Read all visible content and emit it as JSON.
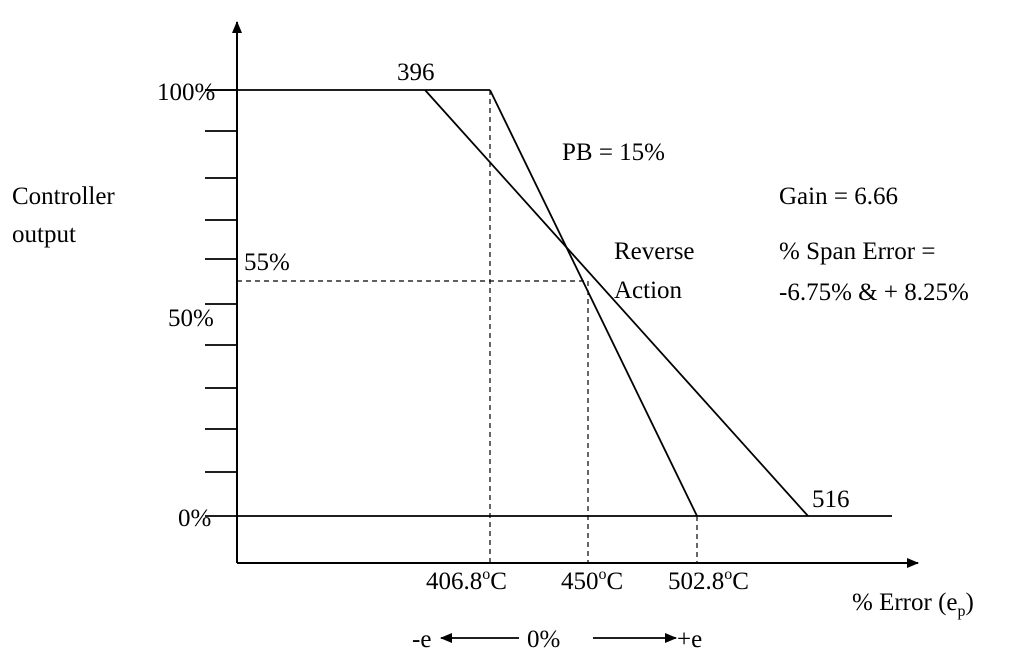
{
  "y_axis": {
    "label_line1": "Controller",
    "label_line2": "output",
    "tick_100": "100%",
    "tick_50": "50%",
    "tick_0": "0%",
    "tick_55": "55%"
  },
  "x_axis": {
    "label_main": "% Error (e",
    "label_sub": "p",
    "label_close": ")",
    "t1_value": "406.8",
    "t2_value": "450",
    "t3_value": "502.8",
    "deg": "o",
    "unit": "C"
  },
  "points": {
    "p396": "396",
    "p516": "516"
  },
  "annotations": {
    "pb": "PB = 15%",
    "gain": "Gain = 6.66",
    "span_line1": "% Span Error =",
    "span_line2": "-6.75% & + 8.25%",
    "reverse_line1": "Reverse",
    "reverse_line2": "Action"
  },
  "direction": {
    "neg": "-e",
    "zero": "0%",
    "pos": "+e"
  }
}
